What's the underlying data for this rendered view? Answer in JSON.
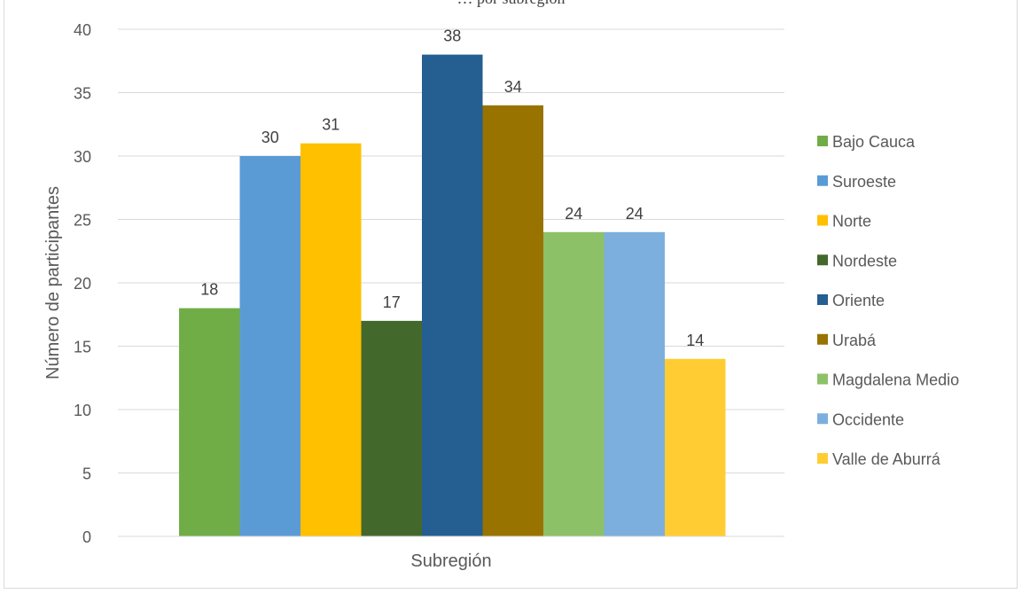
{
  "chart_data": {
    "type": "bar",
    "title": "… por subregión",
    "xlabel": "Subregión",
    "ylabel": "Número de participantes",
    "ylim": [
      0,
      40
    ],
    "yticks": [
      0,
      5,
      10,
      15,
      20,
      25,
      30,
      35,
      40
    ],
    "grid": true,
    "legend_position": "right",
    "categories": [
      "Subregión"
    ],
    "series": [
      {
        "name": "Bajo Cauca",
        "values": [
          18
        ],
        "color": "#70ad47"
      },
      {
        "name": "Suroeste",
        "values": [
          30
        ],
        "color": "#5b9bd5"
      },
      {
        "name": "Norte",
        "values": [
          31
        ],
        "color": "#ffc000"
      },
      {
        "name": "Nordeste",
        "values": [
          17
        ],
        "color": "#43682b"
      },
      {
        "name": "Oriente",
        "values": [
          38
        ],
        "color": "#255e91"
      },
      {
        "name": "Urabá",
        "values": [
          34
        ],
        "color": "#997300"
      },
      {
        "name": "Magdalena Medio",
        "values": [
          24
        ],
        "color": "#8cc168"
      },
      {
        "name": "Occidente",
        "values": [
          24
        ],
        "color": "#7cafdd"
      },
      {
        "name": "Valle de Aburrá",
        "values": [
          14
        ],
        "color": "#ffcd33"
      }
    ]
  }
}
